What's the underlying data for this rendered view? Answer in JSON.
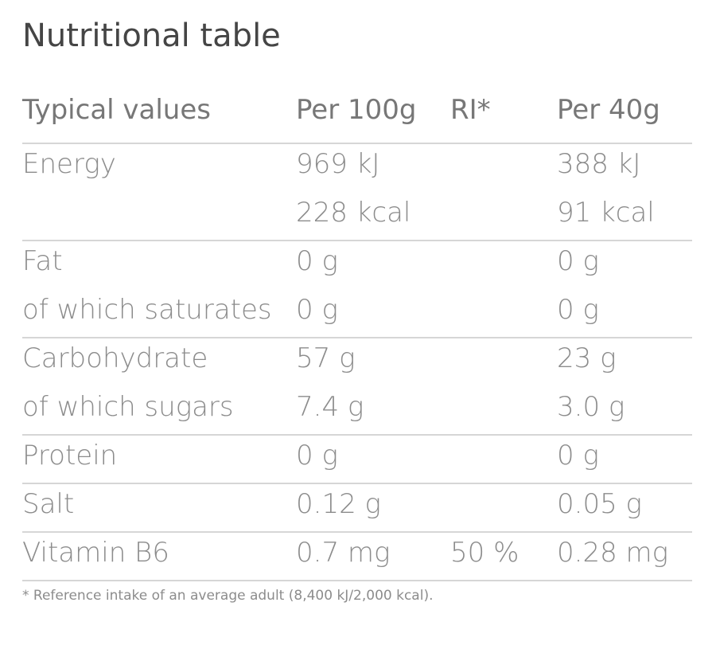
{
  "title": "Nutritional table",
  "table": {
    "header": {
      "label": "Typical values",
      "per100": "Per 100g",
      "ri": "RI*",
      "per40": "Per 40g"
    },
    "groups": [
      {
        "lines": [
          {
            "label": "Energy",
            "per100": "969 kJ",
            "per40": "388 kJ"
          },
          {
            "per100": "228 kcal",
            "per40": "91 kcal"
          }
        ]
      },
      {
        "lines": [
          {
            "label": "Fat",
            "per100": "0 g",
            "per40": "0 g"
          },
          {
            "label": "of which saturates",
            "per100": "0 g",
            "per40": "0 g"
          }
        ]
      },
      {
        "lines": [
          {
            "label": "Carbohydrate",
            "per100": "57 g",
            "per40": "23 g"
          },
          {
            "label": "of which sugars",
            "per100": "7.4 g",
            "per40": "3.0 g"
          }
        ]
      },
      {
        "lines": [
          {
            "label": "Protein",
            "per100": "0 g",
            "per40": "0 g"
          }
        ]
      },
      {
        "lines": [
          {
            "label": "Salt",
            "per100": "0.12 g",
            "per40": "0.05 g"
          }
        ]
      },
      {
        "lines": [
          {
            "label": "Vitamin B6",
            "per100": "0.7 mg",
            "ri": "50 %",
            "per40": "0.28 mg"
          }
        ]
      }
    ]
  },
  "footnote": "* Reference intake of an average adult (8,400 kJ/2,000 kcal)."
}
